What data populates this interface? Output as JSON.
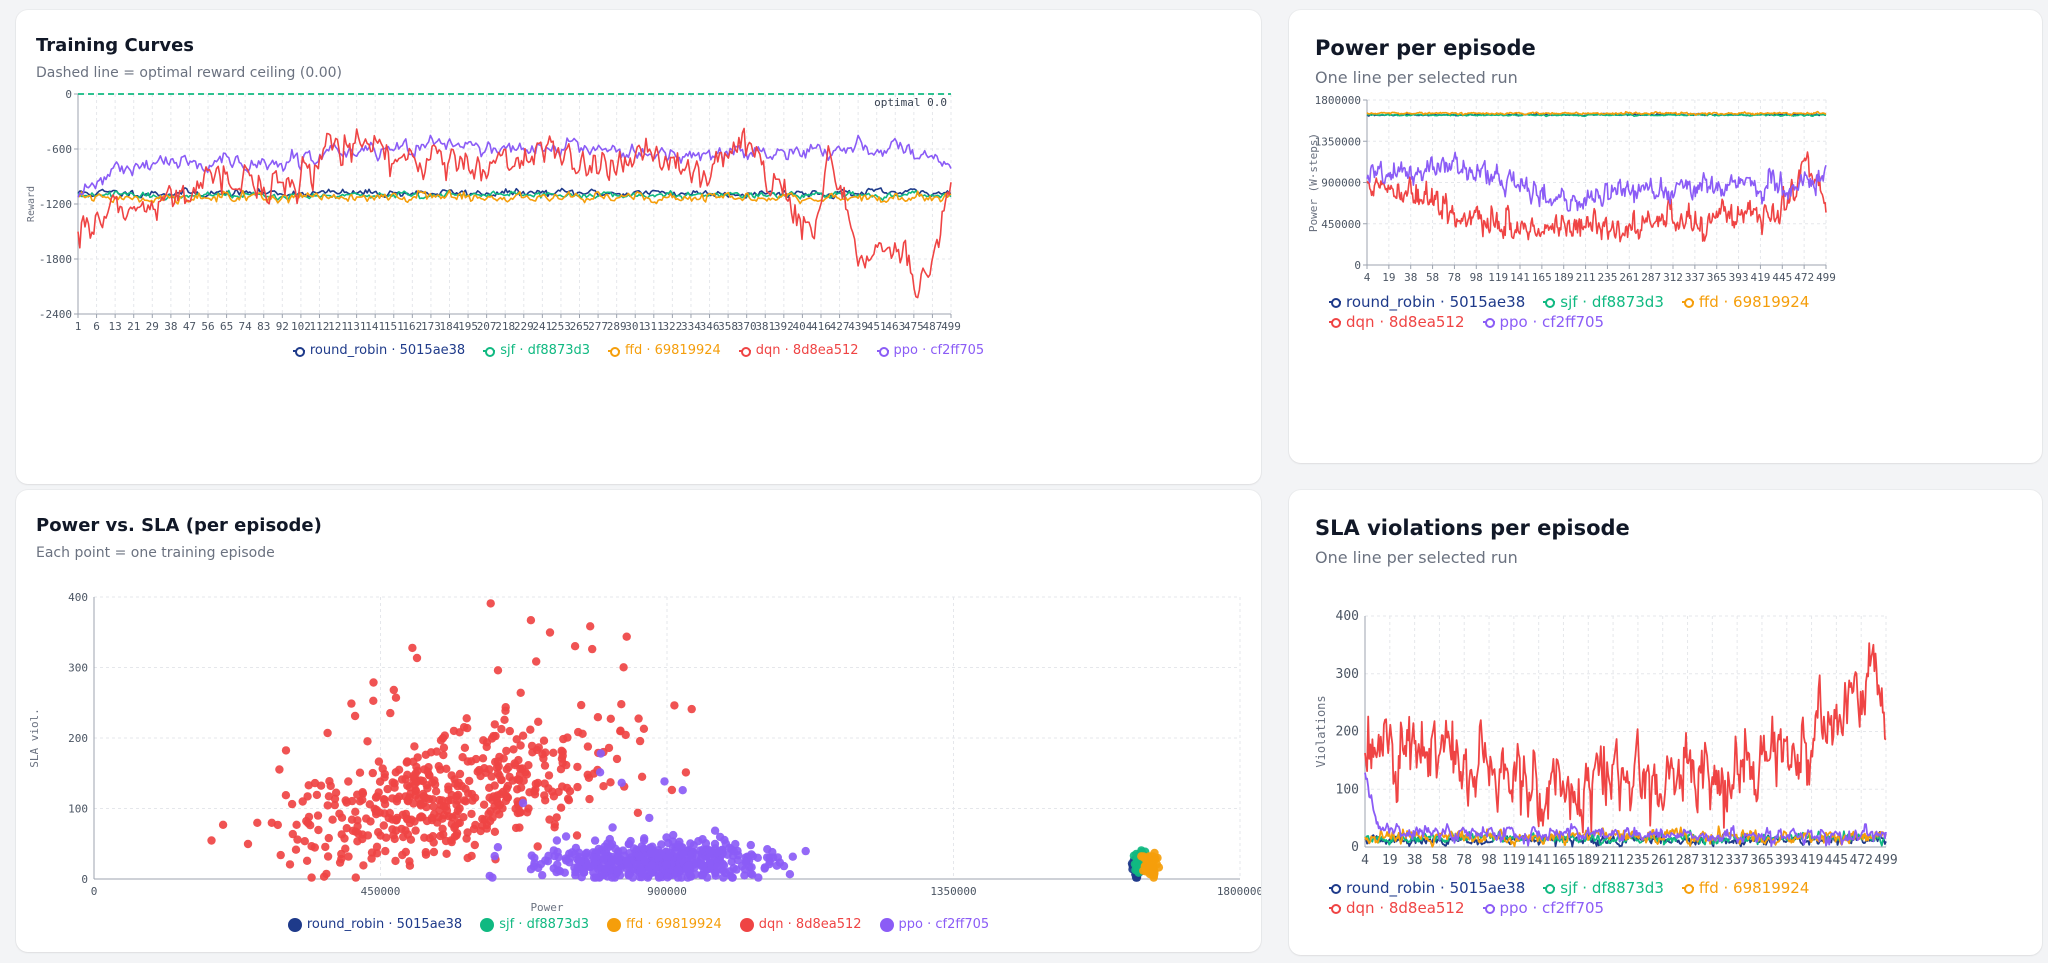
{
  "colors": {
    "round_robin": "#1e3a8a",
    "sjf": "#10b981",
    "ffd": "#f59e0b",
    "dqn": "#ef4444",
    "ppo": "#8b5cf6",
    "optimal": "#10b981",
    "grid": "#e5e7eb",
    "axis": "#9ca3af"
  },
  "series_names": [
    "round_robin · 5015ae38",
    "sjf · df8873d3",
    "ffd · 69819924",
    "dqn · 8d8ea512",
    "ppo · cf2ff705"
  ],
  "training": {
    "title": "Training Curves",
    "subtitle": "Dashed line = optimal reward ceiling (0.00)",
    "optimal_label": "optimal 0.0"
  },
  "power": {
    "title": "Power per episode",
    "subtitle": "One line per selected run"
  },
  "scatter": {
    "title": "Power vs. SLA (per episode)",
    "subtitle": "Each point = one training episode"
  },
  "sla": {
    "title": "SLA violations per episode",
    "subtitle": "One line per selected run"
  },
  "chart_data": [
    {
      "type": "line",
      "title": "Training Curves",
      "ylabel": "Reward",
      "xlabel": "",
      "ylim": [
        -2400,
        0
      ],
      "yticks": [
        0,
        -600,
        -1200,
        -1800,
        -2400
      ],
      "xlim": [
        1,
        499
      ],
      "xticks": [
        "1",
        "6",
        "13",
        "21",
        "29",
        "38",
        "47",
        "56",
        "65",
        "74",
        "83",
        "92",
        "102",
        "112",
        "121",
        "131",
        "141",
        "151",
        "162",
        "173",
        "184",
        "195",
        "207",
        "218",
        "229",
        "241",
        "253",
        "265",
        "277",
        "289",
        "301",
        "311",
        "322",
        "334",
        "346",
        "358",
        "370",
        "381",
        "392",
        "404",
        "416",
        "427",
        "439",
        "451",
        "463",
        "475",
        "487",
        "499"
      ],
      "optimal": 0,
      "grid": true,
      "legend": "bottom",
      "series": [
        {
          "name": "round_robin · 5015ae38",
          "key": "round_robin",
          "mean": -1080,
          "noise": 18,
          "anchors": []
        },
        {
          "name": "sjf · df8873d3",
          "key": "sjf",
          "mean": -1105,
          "noise": 16,
          "anchors": []
        },
        {
          "name": "ffd · 69819924",
          "key": "ffd",
          "mean": -1130,
          "noise": 22,
          "anchors": []
        },
        {
          "name": "dqn · 8d8ea512",
          "key": "dqn",
          "noise": 90,
          "anchors": [
            [
              1,
              -1380
            ],
            [
              40,
              -1200
            ],
            [
              80,
              -950
            ],
            [
              120,
              -1000
            ],
            [
              150,
              -560
            ],
            [
              190,
              -640
            ],
            [
              230,
              -900
            ],
            [
              260,
              -620
            ],
            [
              300,
              -800
            ],
            [
              330,
              -650
            ],
            [
              360,
              -900
            ],
            [
              380,
              -480
            ],
            [
              400,
              -1000
            ],
            [
              420,
              -1550
            ],
            [
              430,
              -700
            ],
            [
              450,
              -1850
            ],
            [
              470,
              -1600
            ],
            [
              480,
              -2100
            ],
            [
              490,
              -1700
            ],
            [
              499,
              -1000
            ]
          ]
        },
        {
          "name": "ppo · cf2ff705",
          "key": "ppo",
          "noise": 40,
          "anchors": [
            [
              1,
              -1100
            ],
            [
              20,
              -800
            ],
            [
              60,
              -740
            ],
            [
              100,
              -780
            ],
            [
              150,
              -640
            ],
            [
              200,
              -560
            ],
            [
              260,
              -600
            ],
            [
              330,
              -640
            ],
            [
              380,
              -620
            ],
            [
              430,
              -620
            ],
            [
              470,
              -580
            ],
            [
              499,
              -760
            ]
          ]
        }
      ]
    },
    {
      "type": "line",
      "title": "Power per episode",
      "ylabel": "Power (W·steps)",
      "xlabel": "",
      "ylim": [
        0,
        1800000
      ],
      "yticks": [
        0,
        450000,
        900000,
        1350000,
        1800000
      ],
      "xlim": [
        4,
        499
      ],
      "xticks": [
        "4",
        "19",
        "38",
        "58",
        "78",
        "98",
        "119",
        "141",
        "165",
        "189",
        "211",
        "235",
        "261",
        "287",
        "312",
        "337",
        "365",
        "393",
        "419",
        "445",
        "472",
        "499"
      ],
      "grid": true,
      "legend": "bottom",
      "series": [
        {
          "name": "round_robin · 5015ae38",
          "key": "round_robin",
          "mean": 1640000,
          "noise": 4000,
          "anchors": []
        },
        {
          "name": "sjf · df8873d3",
          "key": "sjf",
          "mean": 1635000,
          "noise": 4000,
          "anchors": []
        },
        {
          "name": "ffd · 69819924",
          "key": "ffd",
          "mean": 1655000,
          "noise": 5000,
          "anchors": []
        },
        {
          "name": "dqn · 8d8ea512",
          "key": "dqn",
          "noise": 70000,
          "anchors": [
            [
              4,
              880000
            ],
            [
              50,
              720000
            ],
            [
              100,
              580000
            ],
            [
              150,
              420000
            ],
            [
              200,
              360000
            ],
            [
              240,
              460000
            ],
            [
              280,
              380000
            ],
            [
              320,
              520000
            ],
            [
              360,
              440000
            ],
            [
              400,
              600000
            ],
            [
              430,
              480000
            ],
            [
              460,
              700000
            ],
            [
              480,
              1100000
            ],
            [
              499,
              700000
            ]
          ]
        },
        {
          "name": "ppo · cf2ff705",
          "key": "ppo",
          "noise": 60000,
          "anchors": [
            [
              4,
              1000000
            ],
            [
              60,
              1000000
            ],
            [
              100,
              1150000
            ],
            [
              150,
              900000
            ],
            [
              200,
              700000
            ],
            [
              260,
              780000
            ],
            [
              320,
              820000
            ],
            [
              380,
              850000
            ],
            [
              420,
              900000
            ],
            [
              460,
              850000
            ],
            [
              499,
              1050000
            ]
          ]
        }
      ]
    },
    {
      "type": "scatter",
      "title": "Power vs. SLA (per episode)",
      "xlabel": "Power",
      "ylabel": "SLA viol.",
      "xlim": [
        0,
        1800000
      ],
      "ylim": [
        0,
        400
      ],
      "xticks": [
        0,
        450000,
        900000,
        1350000,
        1800000
      ],
      "yticks": [
        0,
        100,
        200,
        300,
        400
      ],
      "grid": true,
      "legend": "bottom",
      "series": [
        {
          "name": "round_robin · 5015ae38",
          "key": "round_robin",
          "x_center": 1640000,
          "x_spread": 8000,
          "y_center": 20,
          "y_spread": 8,
          "count": 60
        },
        {
          "name": "sjf · df8873d3",
          "key": "sjf",
          "x_center": 1645000,
          "x_spread": 8000,
          "y_center": 22,
          "y_spread": 8,
          "count": 60
        },
        {
          "name": "ffd · 69819924",
          "key": "ffd",
          "x_center": 1660000,
          "x_spread": 8000,
          "y_center": 20,
          "y_spread": 9,
          "count": 60
        },
        {
          "name": "dqn · 8d8ea512",
          "key": "dqn",
          "x_center": 560000,
          "x_spread": 230000,
          "y_center": 140,
          "y_spread": 70,
          "count": 500
        },
        {
          "name": "ppo · cf2ff705",
          "key": "ppo",
          "x_center": 880000,
          "x_spread": 150000,
          "y_center": 25,
          "y_spread": 15,
          "count": 500
        }
      ]
    },
    {
      "type": "line",
      "title": "SLA violations per episode",
      "ylabel": "Violations",
      "xlabel": "",
      "ylim": [
        0,
        400
      ],
      "yticks": [
        0,
        100,
        200,
        300,
        400
      ],
      "xlim": [
        4,
        499
      ],
      "xticks": [
        "4",
        "19",
        "38",
        "58",
        "78",
        "98",
        "119",
        "141",
        "165",
        "189",
        "211",
        "235",
        "261",
        "287",
        "312",
        "337",
        "365",
        "393",
        "419",
        "445",
        "472",
        "499"
      ],
      "grid": true,
      "legend": "bottom",
      "series": [
        {
          "name": "round_robin · 5015ae38",
          "key": "round_robin",
          "mean": 12,
          "noise": 4,
          "anchors": []
        },
        {
          "name": "sjf · df8873d3",
          "key": "sjf",
          "mean": 15,
          "noise": 4,
          "anchors": []
        },
        {
          "name": "ffd · 69819924",
          "key": "ffd",
          "mean": 18,
          "noise": 5,
          "anchors": []
        },
        {
          "name": "dqn · 8d8ea512",
          "key": "dqn",
          "noise": 30,
          "anchors": [
            [
              4,
              180
            ],
            [
              40,
              170
            ],
            [
              80,
              160
            ],
            [
              120,
              130
            ],
            [
              150,
              110
            ],
            [
              200,
              100
            ],
            [
              250,
              110
            ],
            [
              290,
              120
            ],
            [
              330,
              130
            ],
            [
              360,
              120
            ],
            [
              400,
              160
            ],
            [
              430,
              180
            ],
            [
              460,
              240
            ],
            [
              480,
              300
            ],
            [
              490,
              350
            ],
            [
              499,
              130
            ]
          ]
        },
        {
          "name": "ppo · cf2ff705",
          "key": "ppo",
          "noise": 6,
          "anchors": [
            [
              4,
              130
            ],
            [
              15,
              40
            ],
            [
              40,
              30
            ],
            [
              100,
              25
            ],
            [
              200,
              22
            ],
            [
              300,
              22
            ],
            [
              400,
              20
            ],
            [
              499,
              22
            ]
          ]
        }
      ]
    }
  ]
}
